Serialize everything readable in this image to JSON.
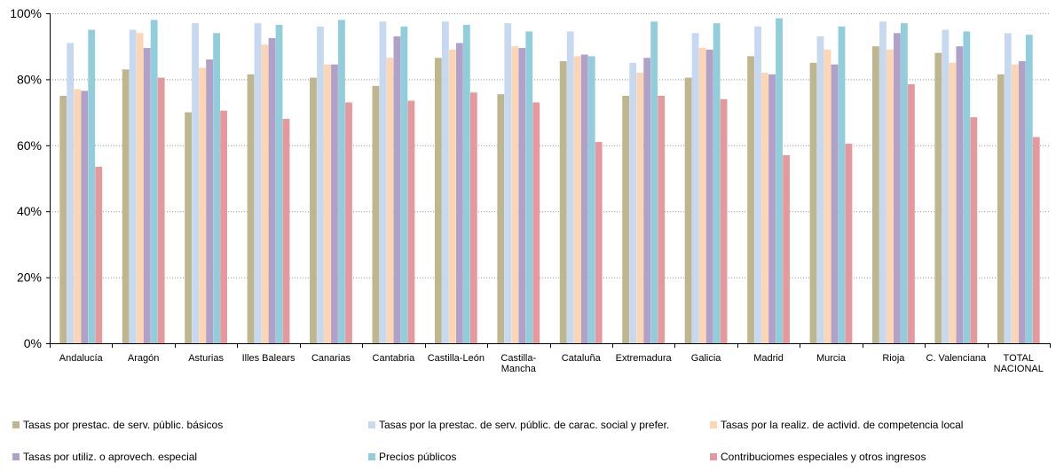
{
  "chart_data": {
    "type": "bar",
    "title": "",
    "xlabel": "",
    "ylabel": "",
    "ylim": [
      0,
      100
    ],
    "yticks": [
      "0%",
      "20%",
      "40%",
      "60%",
      "80%",
      "100%"
    ],
    "ytick_values": [
      0,
      20,
      40,
      60,
      80,
      100
    ],
    "grid": "horizontal dotted",
    "legend_position": "bottom",
    "categories": [
      [
        "Andalucía"
      ],
      [
        "Aragón"
      ],
      [
        "Asturias"
      ],
      [
        "Illes Balears"
      ],
      [
        "Canarias"
      ],
      [
        "Cantabria"
      ],
      [
        "Castilla-León"
      ],
      [
        "Castilla-",
        "Mancha"
      ],
      [
        "Cataluña"
      ],
      [
        "Extremadura"
      ],
      [
        "Galicia"
      ],
      [
        "Madrid"
      ],
      [
        "Murcia"
      ],
      [
        "Rioja"
      ],
      [
        "C. Valenciana"
      ],
      [
        "TOTAL",
        "NACIONAL"
      ]
    ],
    "series": [
      {
        "name": "Tasas por prestac. de serv. públic. básicos",
        "color": "#bdb68e",
        "values": [
          75,
          83,
          70,
          81.5,
          80.5,
          78,
          86.5,
          75.5,
          85.5,
          75,
          80.5,
          87,
          85,
          90,
          88,
          81.5
        ]
      },
      {
        "name": "Tasas por la prestac. de serv. públic. de carac. social y prefer.",
        "color": "#c6d9f0",
        "values": [
          91,
          95,
          97,
          97,
          96,
          97.5,
          97.5,
          97,
          94.5,
          85,
          94,
          96,
          93,
          97.5,
          95,
          94
        ]
      },
      {
        "name": "Tasas por la realiz. de activid. de competencia local",
        "color": "#fcd5b4",
        "values": [
          77,
          94,
          83.5,
          90.5,
          84.5,
          86.5,
          89,
          90,
          87,
          82,
          89.5,
          82,
          89,
          89,
          85,
          84.5
        ]
      },
      {
        "name": "Tasas por utiliz. o aprovech. especial",
        "color": "#b1a0c7",
        "values": [
          76.5,
          89.5,
          86,
          92.5,
          84.5,
          93,
          91,
          89.5,
          87.5,
          86.5,
          89,
          81.5,
          84.5,
          94,
          90,
          85.5
        ]
      },
      {
        "name": "Precios públicos",
        "color": "#92cddc",
        "values": [
          95,
          98,
          94,
          96.5,
          98,
          96,
          96.5,
          94.5,
          87,
          97.5,
          97,
          98.5,
          96,
          97,
          94.5,
          93.5
        ]
      },
      {
        "name": "Contribuciomes especiales y otros ingresos",
        "color": "#e6999d",
        "values": [
          53.5,
          80.5,
          70.5,
          68,
          73,
          73.5,
          76,
          73,
          61,
          75,
          74,
          57,
          60.5,
          78.5,
          68.5,
          62.5
        ]
      }
    ]
  }
}
